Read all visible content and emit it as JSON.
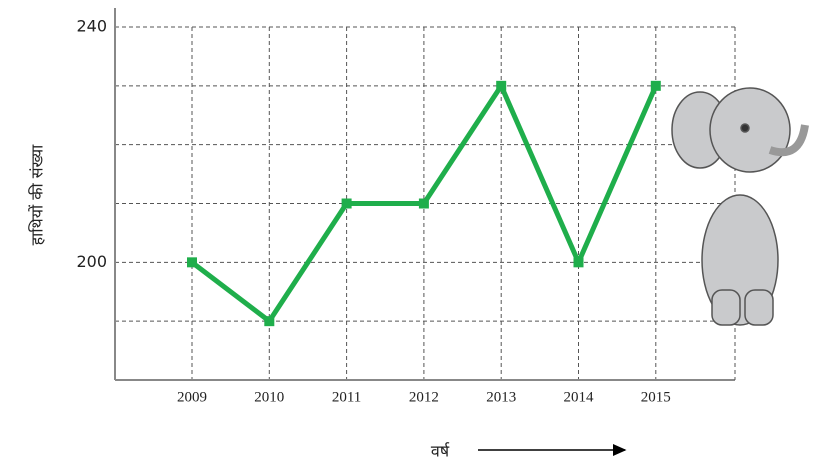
{
  "chart_data": {
    "type": "line",
    "categories": [
      2009,
      2010,
      2011,
      2012,
      2013,
      2014,
      2015
    ],
    "series": [
      {
        "name": "हाथियों की संख्या",
        "color": "#1fae4b",
        "values": [
          200,
          190,
          210,
          210,
          230,
          200,
          230
        ]
      }
    ],
    "xlabel": "वर्ष",
    "ylabel": "हाथियों की संख्या",
    "ylim": [
      180,
      240
    ],
    "yticks": [
      200,
      240
    ],
    "ygrid": [
      190,
      200,
      210,
      220,
      230,
      240
    ],
    "grid": true
  }
}
